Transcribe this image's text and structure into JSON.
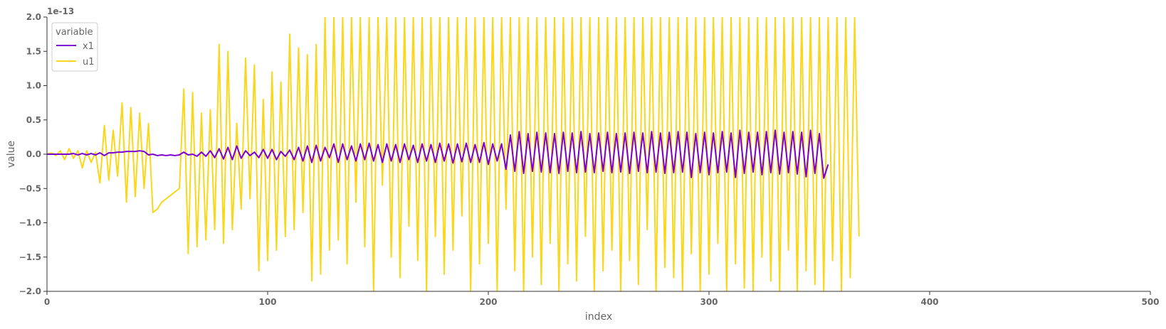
{
  "chart_data": {
    "type": "line",
    "title": "",
    "xlabel": "index",
    "ylabel": "value",
    "offset_text": "1e-13",
    "scale": 1e-13,
    "xlim": [
      0,
      500
    ],
    "ylim": [
      -2.0,
      2.0
    ],
    "xticks": [
      0,
      100,
      200,
      300,
      400,
      500
    ],
    "xtick_labels": [
      "0",
      "100",
      "200",
      "300",
      "400",
      "500"
    ],
    "yticks": [
      -2.0,
      -1.5,
      -1.0,
      -0.5,
      0.0,
      0.5,
      1.0,
      1.5,
      2.0
    ],
    "ytick_labels": [
      "−2.0",
      "−1.5",
      "−1.0",
      "−0.5",
      "0.0",
      "0.5",
      "1.0",
      "1.5",
      "2.0"
    ],
    "grid": false,
    "legend": {
      "title": "variable",
      "placement": "top-left"
    },
    "series": [
      {
        "name": "x1",
        "color": "#7b00d4",
        "x_start": 0,
        "x_step": 2,
        "values": [
          0.0,
          0.0,
          0.0,
          0.0,
          0.0,
          0.0,
          0.01,
          -0.01,
          0.01,
          -0.01,
          0.01,
          -0.01,
          0.02,
          -0.02,
          0.02,
          0.02,
          0.03,
          0.03,
          0.04,
          0.04,
          0.04,
          0.05,
          0.04,
          -0.01,
          0.0,
          -0.02,
          -0.01,
          -0.02,
          -0.01,
          -0.02,
          -0.01,
          0.03,
          -0.01,
          0.0,
          -0.03,
          0.03,
          -0.03,
          0.05,
          -0.05,
          0.08,
          -0.07,
          0.1,
          -0.08,
          0.12,
          -0.06,
          0.05,
          -0.02,
          0.03,
          -0.05,
          0.07,
          -0.06,
          0.07,
          -0.08,
          0.04,
          -0.03,
          0.06,
          -0.08,
          0.1,
          -0.1,
          0.12,
          -0.12,
          0.13,
          -0.1,
          0.1,
          -0.05,
          0.15,
          -0.12,
          0.15,
          -0.08,
          0.12,
          -0.1,
          0.15,
          -0.08,
          0.16,
          -0.1,
          0.14,
          -0.12,
          0.15,
          -0.1,
          0.14,
          -0.12,
          0.15,
          -0.08,
          0.13,
          -0.12,
          0.15,
          -0.1,
          0.14,
          -0.12,
          0.16,
          -0.1,
          0.15,
          -0.13,
          0.15,
          -0.11,
          0.16,
          -0.12,
          0.14,
          -0.12,
          0.17,
          -0.15,
          0.15,
          -0.1,
          0.15,
          -0.22,
          0.28,
          -0.25,
          0.33,
          -0.28,
          0.3,
          -0.25,
          0.32,
          -0.26,
          0.31,
          -0.27,
          0.3,
          -0.28,
          0.32,
          -0.25,
          0.31,
          -0.27,
          0.33,
          -0.26,
          0.3,
          -0.27,
          0.31,
          -0.25,
          0.32,
          -0.27,
          0.3,
          -0.26,
          0.31,
          -0.28,
          0.32,
          -0.25,
          0.31,
          -0.27,
          0.33,
          -0.26,
          0.31,
          -0.28,
          0.32,
          -0.27,
          0.33,
          -0.26,
          0.32,
          -0.34,
          0.3,
          -0.27,
          0.32,
          -0.3,
          0.31,
          -0.27,
          0.33,
          -0.26,
          0.31,
          -0.34,
          0.35,
          -0.28,
          0.32,
          -0.26,
          0.32,
          -0.3,
          0.33,
          -0.27,
          0.35,
          -0.29,
          0.32,
          -0.27,
          0.33,
          -0.29,
          0.32,
          -0.33,
          0.35,
          -0.28,
          0.3,
          -0.35,
          -0.15
        ]
      },
      {
        "name": "u1",
        "color": "#f9d71c",
        "x_start": 0,
        "x_step": 2,
        "values": [
          0.0,
          0.02,
          -0.02,
          0.05,
          -0.08,
          0.08,
          -0.06,
          0.05,
          -0.2,
          0.05,
          -0.12,
          0.03,
          -0.42,
          0.42,
          -0.38,
          0.35,
          -0.32,
          0.75,
          -0.7,
          0.68,
          -0.62,
          0.6,
          -0.5,
          0.45,
          -0.85,
          -0.8,
          -0.7,
          -0.65,
          -0.6,
          -0.55,
          -0.5,
          0.95,
          -1.45,
          0.9,
          -1.35,
          0.6,
          -1.25,
          0.65,
          -1.1,
          1.6,
          -1.3,
          1.5,
          -1.1,
          0.45,
          -0.8,
          1.4,
          -0.65,
          1.3,
          -1.7,
          0.8,
          -1.55,
          1.2,
          -1.4,
          1.05,
          -1.2,
          1.75,
          -1.1,
          1.55,
          -0.85,
          1.45,
          -1.85,
          1.6,
          -1.75,
          2.0,
          -1.4,
          2.0,
          -1.25,
          2.0,
          -1.6,
          2.0,
          -0.7,
          2.0,
          -1.35,
          2.0,
          -2.0,
          2.0,
          -0.45,
          2.0,
          -1.5,
          2.0,
          -1.8,
          2.0,
          -1.05,
          2.0,
          -1.55,
          2.0,
          -2.0,
          2.0,
          -1.2,
          2.0,
          -1.75,
          2.0,
          -1.4,
          2.0,
          -0.9,
          2.0,
          -2.0,
          2.0,
          -1.6,
          2.0,
          -1.3,
          2.0,
          -2.0,
          2.0,
          -0.8,
          2.0,
          -1.7,
          2.0,
          -2.0,
          2.0,
          -1.5,
          2.0,
          -1.9,
          2.0,
          -1.3,
          2.0,
          -2.0,
          2.0,
          -1.6,
          2.0,
          -1.85,
          2.0,
          -1.2,
          2.0,
          -2.0,
          2.0,
          -1.7,
          2.0,
          -1.4,
          2.0,
          -2.0,
          2.0,
          -1.55,
          2.0,
          -1.9,
          2.0,
          -1.1,
          2.0,
          -2.0,
          2.0,
          -1.65,
          2.0,
          -1.8,
          2.0,
          -2.0,
          2.0,
          -1.45,
          2.0,
          -2.0,
          2.0,
          -1.75,
          2.0,
          -1.3,
          2.0,
          -2.0,
          2.0,
          -1.6,
          2.0,
          -1.95,
          2.0,
          -2.0,
          2.0,
          -1.5,
          2.0,
          -1.85,
          2.0,
          -2.0,
          2.0,
          -1.4,
          2.0,
          -2.0,
          2.0,
          -1.7,
          2.0,
          -1.9,
          2.0,
          -2.0,
          2.0,
          -1.55,
          2.0,
          -2.0,
          2.0,
          -1.8,
          2.0,
          -1.2
        ]
      }
    ]
  }
}
